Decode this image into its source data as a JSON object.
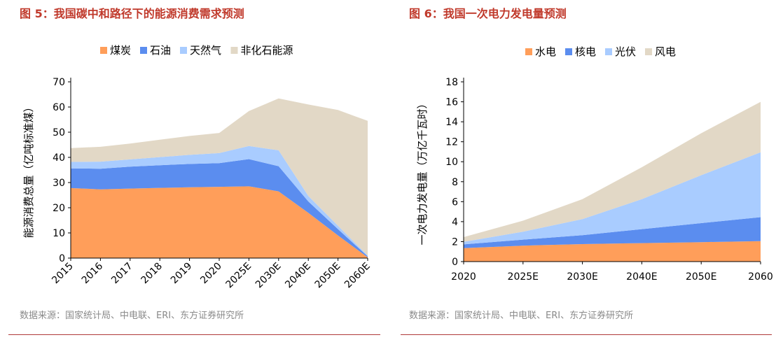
{
  "chart_data": [
    {
      "type": "area",
      "title": "图 5：我国碳中和路径下的能源消费需求预测",
      "ylabel": "能源消费总量（亿吨标准煤）",
      "xlabel": "",
      "categories": [
        "2015",
        "2016",
        "2017",
        "2018",
        "2019",
        "2020",
        "2025E",
        "2030E",
        "2040E",
        "2050E",
        "2060E"
      ],
      "ylim": [
        0,
        70
      ],
      "yticks": [
        "0",
        "10",
        "20",
        "30",
        "40",
        "50",
        "60",
        "70"
      ],
      "stacked": true,
      "legend_position": "top",
      "series": [
        {
          "name": "煤炭",
          "color": "#FF9E5A",
          "values": [
            27.8,
            27.3,
            27.6,
            27.9,
            28.1,
            28.3,
            28.5,
            26.5,
            18.0,
            9.0,
            0.3
          ]
        },
        {
          "name": "石油",
          "color": "#5B8DEF",
          "values": [
            7.8,
            8.2,
            8.7,
            9.0,
            9.3,
            9.4,
            10.8,
            10.0,
            4.5,
            2.5,
            0.4
          ]
        },
        {
          "name": "天然气",
          "color": "#A9CCFF",
          "values": [
            2.6,
            2.8,
            2.9,
            3.2,
            3.6,
            4.0,
            5.2,
            6.3,
            2.2,
            1.3,
            0.3
          ]
        },
        {
          "name": "非化石能源",
          "color": "#E2D8C6",
          "values": [
            5.5,
            5.9,
            6.3,
            6.9,
            7.5,
            8.0,
            13.9,
            20.6,
            36.3,
            46.0,
            53.5
          ]
        }
      ],
      "source": "数据来源：国家统计局、中电联、ERI、东方证券研究所"
    },
    {
      "type": "area",
      "title": "图 6：我国一次电力发电量预测",
      "ylabel": "一次电力发电量（万亿千瓦时）",
      "xlabel": "",
      "categories": [
        "2020",
        "2025E",
        "2030E",
        "2040E",
        "2050E",
        "2060"
      ],
      "ylim": [
        0,
        18
      ],
      "yticks": [
        "0",
        "2",
        "4",
        "6",
        "8",
        "10",
        "12",
        "14",
        "16",
        "18"
      ],
      "stacked": true,
      "legend_position": "top",
      "series": [
        {
          "name": "水电",
          "color": "#FF9E5A",
          "values": [
            1.35,
            1.6,
            1.75,
            1.85,
            1.95,
            2.05
          ]
        },
        {
          "name": "核电",
          "color": "#5B8DEF",
          "values": [
            0.37,
            0.6,
            0.9,
            1.4,
            1.9,
            2.4
          ]
        },
        {
          "name": "光伏",
          "color": "#A9CCFF",
          "values": [
            0.26,
            0.8,
            1.6,
            3.0,
            4.8,
            6.5
          ]
        },
        {
          "name": "风电",
          "color": "#E2D8C6",
          "values": [
            0.47,
            1.1,
            2.0,
            3.2,
            4.2,
            5.05
          ]
        }
      ],
      "source": "数据来源：国家统计局、中电联、ERI、东方证券研究所"
    }
  ]
}
